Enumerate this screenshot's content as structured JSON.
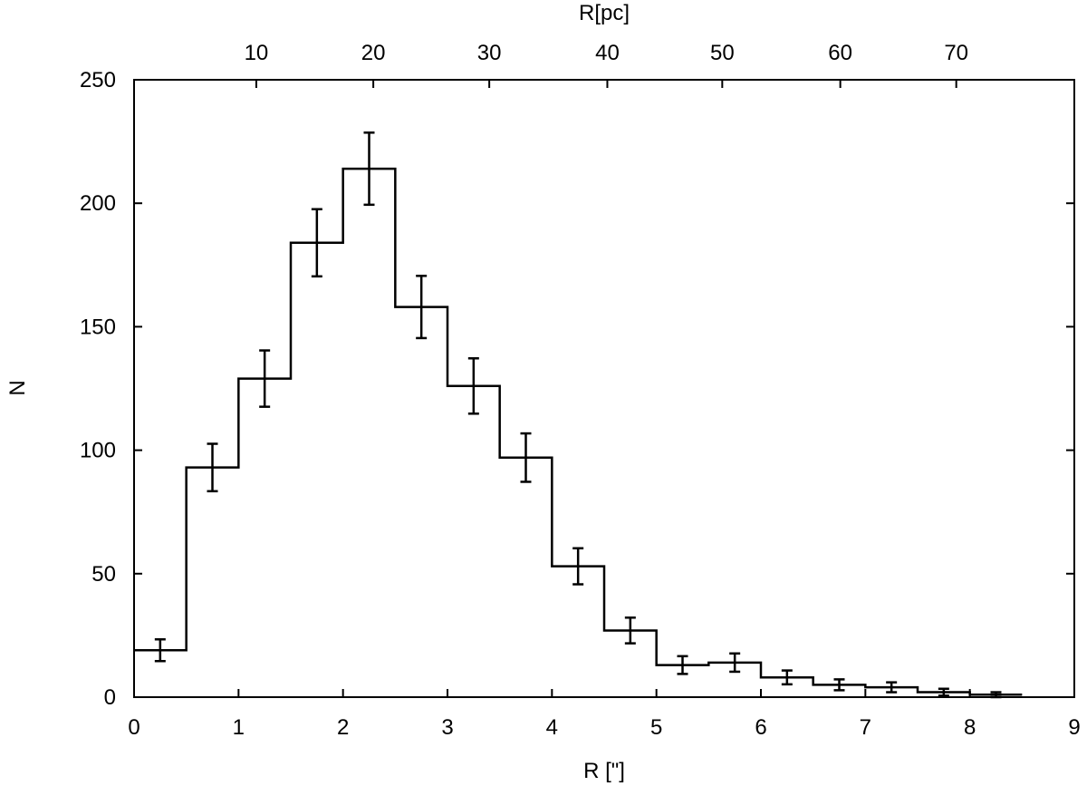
{
  "chart_data": {
    "type": "bar",
    "style": "step-histogram-with-error-bars",
    "xlabel": "R [\"]",
    "ylabel": "N",
    "top_axis_label": "R[pc]",
    "xlim": [
      0,
      9
    ],
    "ylim": [
      0,
      250
    ],
    "x_ticks": [
      "0",
      "1",
      "2",
      "3",
      "4",
      "5",
      "6",
      "7",
      "8",
      "9"
    ],
    "y_ticks": [
      "0",
      "50",
      "100",
      "150",
      "200",
      "250"
    ],
    "top_ticks": [
      {
        "label": "10",
        "x": 1.17
      },
      {
        "label": "20",
        "x": 2.29
      },
      {
        "label": "30",
        "x": 3.4
      },
      {
        "label": "40",
        "x": 4.53
      },
      {
        "label": "50",
        "x": 5.63
      },
      {
        "label": "60",
        "x": 6.76
      },
      {
        "label": "70",
        "x": 7.87
      }
    ],
    "bin_width": 0.5,
    "bin_starts": [
      0,
      0.5,
      1,
      1.5,
      2,
      2.5,
      3,
      3.5,
      4,
      4.5,
      5,
      5.5,
      6,
      6.5,
      7,
      7.5,
      8
    ],
    "values": [
      19,
      93,
      129,
      184,
      214,
      158,
      126,
      97,
      53,
      27,
      13,
      14,
      8,
      5,
      4,
      2,
      1
    ],
    "errors": [
      4.4,
      9.6,
      11.4,
      13.6,
      14.6,
      12.6,
      11.2,
      9.8,
      7.3,
      5.2,
      3.6,
      3.7,
      2.8,
      2.2,
      2.0,
      1.4,
      1.0
    ],
    "grid": false,
    "legend": "none"
  }
}
